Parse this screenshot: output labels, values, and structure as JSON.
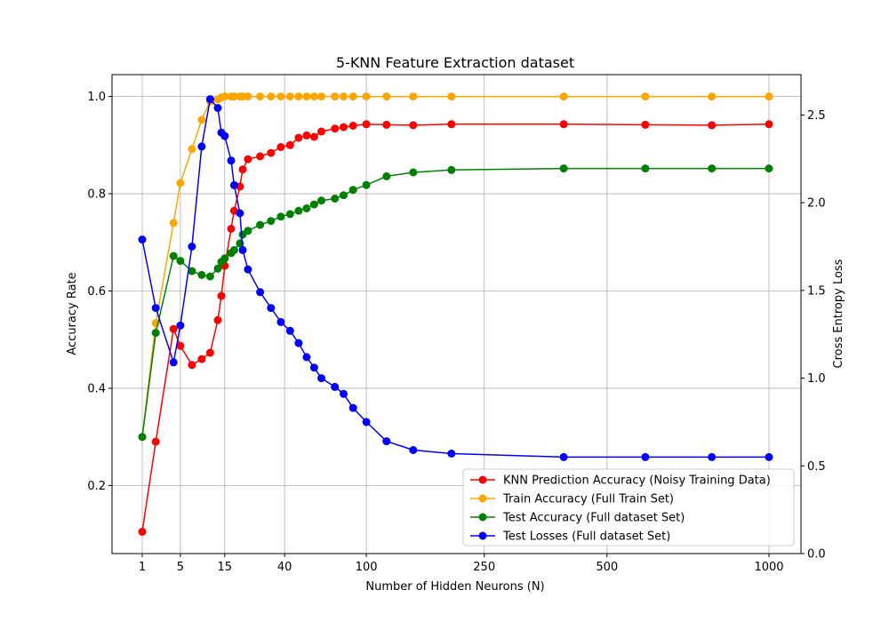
{
  "chart_data": {
    "type": "line",
    "title": "5-KNN Feature Extraction dataset",
    "xlabel": "Number of Hidden Neurons (N)",
    "ylabel": "Accuracy Rate",
    "y2label": "Cross Entropy Loss",
    "xscale": "log-like (N^0.4)",
    "xlim": [
      1,
      1000
    ],
    "ylim": [
      0.06,
      1.045
    ],
    "y2lim": [
      0.0,
      2.73
    ],
    "xticks": [
      1,
      5,
      15,
      40,
      100,
      250,
      500,
      1000
    ],
    "yticks": [
      0.2,
      0.4,
      0.6,
      0.8,
      1.0
    ],
    "y2ticks": [
      0.0,
      0.5,
      1.0,
      1.5,
      2.0,
      2.5
    ],
    "grid": true,
    "legend_position": "lower-right",
    "x": [
      1,
      2,
      4,
      5,
      7,
      9,
      11,
      13,
      14,
      15,
      17,
      18,
      20,
      21,
      23,
      28,
      33,
      38,
      43,
      48,
      53,
      58,
      63,
      73,
      80,
      88,
      100,
      120,
      150,
      200,
      400,
      600,
      800,
      1000
    ],
    "series": [
      {
        "name": "KNN Prediction Accuracy (Noisy Training Data)",
        "axis": "left",
        "color": "#ff0000",
        "values": [
          0.105,
          0.29,
          0.522,
          0.487,
          0.448,
          0.46,
          0.473,
          0.54,
          0.59,
          0.652,
          0.728,
          0.765,
          0.815,
          0.85,
          0.871,
          0.877,
          0.884,
          0.896,
          0.9,
          0.915,
          0.92,
          0.917,
          0.928,
          0.934,
          0.937,
          0.94,
          0.943,
          0.942,
          0.941,
          0.943,
          0.943,
          0.942,
          0.941,
          0.943
        ]
      },
      {
        "name": "Train Accuracy (Full Train Set)",
        "axis": "left",
        "color": "#ffa500",
        "values": [
          0.3,
          0.534,
          0.74,
          0.822,
          0.892,
          0.952,
          0.99,
          0.994,
          0.998,
          1.0,
          1.0,
          1.0,
          1.0,
          1.0,
          1.0,
          1.0,
          1.0,
          1.0,
          1.0,
          1.0,
          1.0,
          1.0,
          1.0,
          1.0,
          1.0,
          1.0,
          1.0,
          1.0,
          1.0,
          1.0,
          1.0,
          1.0,
          1.0,
          1.0
        ]
      },
      {
        "name": "Test Accuracy (Full dataset Set)",
        "axis": "left",
        "color": "#008000",
        "values": [
          0.3,
          0.514,
          0.672,
          0.662,
          0.641,
          0.633,
          0.63,
          0.646,
          0.66,
          0.667,
          0.678,
          0.684,
          0.698,
          0.716,
          0.724,
          0.736,
          0.744,
          0.753,
          0.758,
          0.765,
          0.77,
          0.778,
          0.786,
          0.79,
          0.797,
          0.808,
          0.818,
          0.836,
          0.844,
          0.849,
          0.852,
          0.852,
          0.852,
          0.852
        ]
      },
      {
        "name": "Test Losses (Full dataset Set)",
        "axis": "right",
        "color": "#0000ff",
        "values": [
          1.79,
          1.4,
          1.09,
          1.3,
          1.75,
          2.32,
          2.59,
          2.54,
          2.4,
          2.38,
          2.24,
          2.1,
          1.94,
          1.73,
          1.62,
          1.49,
          1.4,
          1.32,
          1.27,
          1.2,
          1.12,
          1.06,
          1.0,
          0.95,
          0.91,
          0.83,
          0.75,
          0.64,
          0.59,
          0.57,
          0.55,
          0.55,
          0.55,
          0.55
        ]
      }
    ]
  }
}
